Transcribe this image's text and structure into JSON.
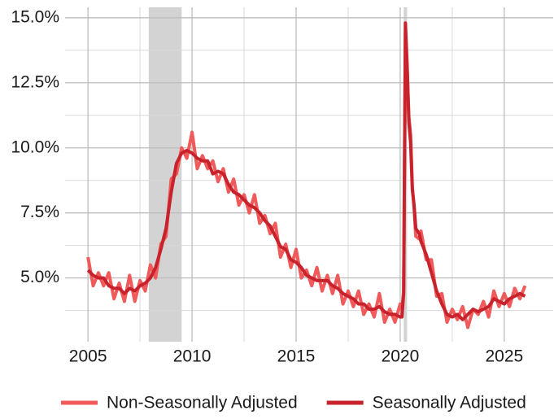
{
  "chart_data": {
    "type": "line",
    "x": [
      2005,
      2005.25,
      2005.5,
      2005.75,
      2006,
      2006.25,
      2006.5,
      2006.75,
      2007,
      2007.25,
      2007.5,
      2007.75,
      2008,
      2008.25,
      2008.5,
      2008.75,
      2009,
      2009.25,
      2009.5,
      2009.75,
      2010,
      2010.25,
      2010.5,
      2010.75,
      2011,
      2011.25,
      2011.5,
      2011.75,
      2012,
      2012.25,
      2012.5,
      2012.75,
      2013,
      2013.25,
      2013.5,
      2013.75,
      2014,
      2014.25,
      2014.5,
      2014.75,
      2015,
      2015.25,
      2015.5,
      2015.75,
      2016,
      2016.25,
      2016.5,
      2016.75,
      2017,
      2017.25,
      2017.5,
      2017.75,
      2018,
      2018.25,
      2018.5,
      2018.75,
      2019,
      2019.25,
      2019.5,
      2019.75,
      2020,
      2020.083,
      2020.167,
      2020.25,
      2020.333,
      2020.417,
      2020.5,
      2020.583,
      2020.667,
      2020.75,
      2020.917,
      2021,
      2021.25,
      2021.5,
      2021.75,
      2022,
      2022.25,
      2022.5,
      2022.75,
      2023,
      2023.25,
      2023.5,
      2023.75,
      2024,
      2024.25,
      2024.5,
      2024.75,
      2025,
      2025.25,
      2025.5,
      2025.75,
      2026
    ],
    "series": [
      {
        "name": "Non-Seasonally Adjusted",
        "color": "#f05a5a",
        "values": [
          5.8,
          4.7,
          5.2,
          4.7,
          5.2,
          4.2,
          4.8,
          4.1,
          5.1,
          4.1,
          4.9,
          4.5,
          5.5,
          5.0,
          6.3,
          6.6,
          8.8,
          9.0,
          10.0,
          9.6,
          10.6,
          9.2,
          9.7,
          9.2,
          9.5,
          8.7,
          9.2,
          8.3,
          8.8,
          7.8,
          8.2,
          7.5,
          8.2,
          7.1,
          7.4,
          6.7,
          7.1,
          5.8,
          6.3,
          5.4,
          6.1,
          5.0,
          5.3,
          4.7,
          5.4,
          4.5,
          5.1,
          4.4,
          5.1,
          4.0,
          4.5,
          3.9,
          4.5,
          3.6,
          4.0,
          3.5,
          4.4,
          3.3,
          3.8,
          3.3,
          4.0,
          3.8,
          4.5,
          14.4,
          13.0,
          11.2,
          10.5,
          8.5,
          7.7,
          6.6,
          6.5,
          6.8,
          5.7,
          5.7,
          4.3,
          4.4,
          3.3,
          3.8,
          3.4,
          3.9,
          3.1,
          3.8,
          3.6,
          4.1,
          3.5,
          4.5,
          3.9,
          4.4,
          3.9,
          4.6,
          4.2,
          4.7
        ]
      },
      {
        "name": "Seasonally Adjusted",
        "color": "#c8232c",
        "values": [
          5.3,
          5.1,
          5.0,
          5.0,
          4.7,
          4.6,
          4.6,
          4.4,
          4.6,
          4.5,
          4.7,
          4.8,
          5.0,
          5.4,
          6.1,
          6.9,
          8.3,
          9.4,
          9.8,
          9.9,
          9.8,
          9.6,
          9.5,
          9.5,
          9.0,
          9.1,
          9.0,
          8.6,
          8.3,
          8.2,
          8.0,
          7.8,
          7.7,
          7.5,
          7.2,
          7.0,
          6.6,
          6.2,
          6.1,
          5.7,
          5.6,
          5.4,
          5.1,
          5.0,
          4.9,
          4.9,
          4.9,
          4.7,
          4.6,
          4.4,
          4.3,
          4.2,
          4.0,
          4.0,
          3.8,
          3.8,
          3.9,
          3.7,
          3.6,
          3.6,
          3.5,
          3.5,
          4.4,
          14.8,
          13.2,
          11.0,
          10.2,
          8.4,
          7.8,
          6.9,
          6.7,
          6.4,
          5.9,
          5.2,
          4.5,
          4.0,
          3.6,
          3.5,
          3.6,
          3.4,
          3.6,
          3.8,
          3.7,
          3.8,
          3.9,
          4.2,
          4.1,
          4.0,
          4.2,
          4.3,
          4.4,
          4.3
        ]
      }
    ],
    "recessions": [
      [
        2007.92,
        2009.5
      ],
      [
        2020.17,
        2020.33
      ]
    ],
    "recession_color": "#d3d3d3",
    "xlim": [
      2003.9,
      2027.35
    ],
    "xticks": [
      2005,
      2010,
      2015,
      2020,
      2025
    ],
    "xminor": [
      2007.5,
      2012.5,
      2017.5,
      2022.5
    ],
    "ylim": [
      2.55,
      15.4
    ],
    "yticks": [
      {
        "value": 5,
        "label": "5.0%"
      },
      {
        "value": 7.5,
        "label": "7.5%"
      },
      {
        "value": 10,
        "label": "10.0%"
      },
      {
        "value": 12.5,
        "label": "12.5%"
      },
      {
        "value": 15,
        "label": "15.0%"
      }
    ],
    "yminor": [
      3.75,
      6.25,
      8.75,
      11.25,
      13.75
    ],
    "grid": true,
    "legend": "bottom"
  }
}
